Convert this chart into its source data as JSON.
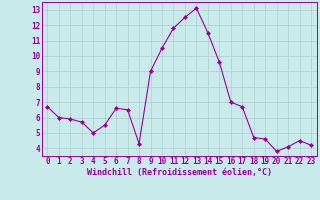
{
  "x": [
    0,
    1,
    2,
    3,
    4,
    5,
    6,
    7,
    8,
    9,
    10,
    11,
    12,
    13,
    14,
    15,
    16,
    17,
    18,
    19,
    20,
    21,
    22,
    23
  ],
  "y": [
    6.7,
    6.0,
    5.9,
    5.7,
    5.0,
    5.5,
    6.6,
    6.5,
    4.3,
    9.0,
    10.5,
    11.8,
    12.5,
    13.1,
    11.5,
    9.6,
    7.0,
    6.7,
    4.7,
    4.6,
    3.8,
    4.1,
    4.5,
    4.2
  ],
  "xlabel": "Windchill (Refroidissement éolien,°C)",
  "bg_color": "#c8eaea",
  "line_color": "#990099",
  "grid_color": "#b0cccc",
  "ylim": [
    3.5,
    13.5
  ],
  "xlim": [
    -0.5,
    23.5
  ],
  "yticks": [
    4,
    5,
    6,
    7,
    8,
    9,
    10,
    11,
    12,
    13
  ],
  "xticks": [
    0,
    1,
    2,
    3,
    4,
    5,
    6,
    7,
    8,
    9,
    10,
    11,
    12,
    13,
    14,
    15,
    16,
    17,
    18,
    19,
    20,
    21,
    22,
    23
  ],
  "tick_fontsize": 5.5,
  "xlabel_fontsize": 6.0
}
